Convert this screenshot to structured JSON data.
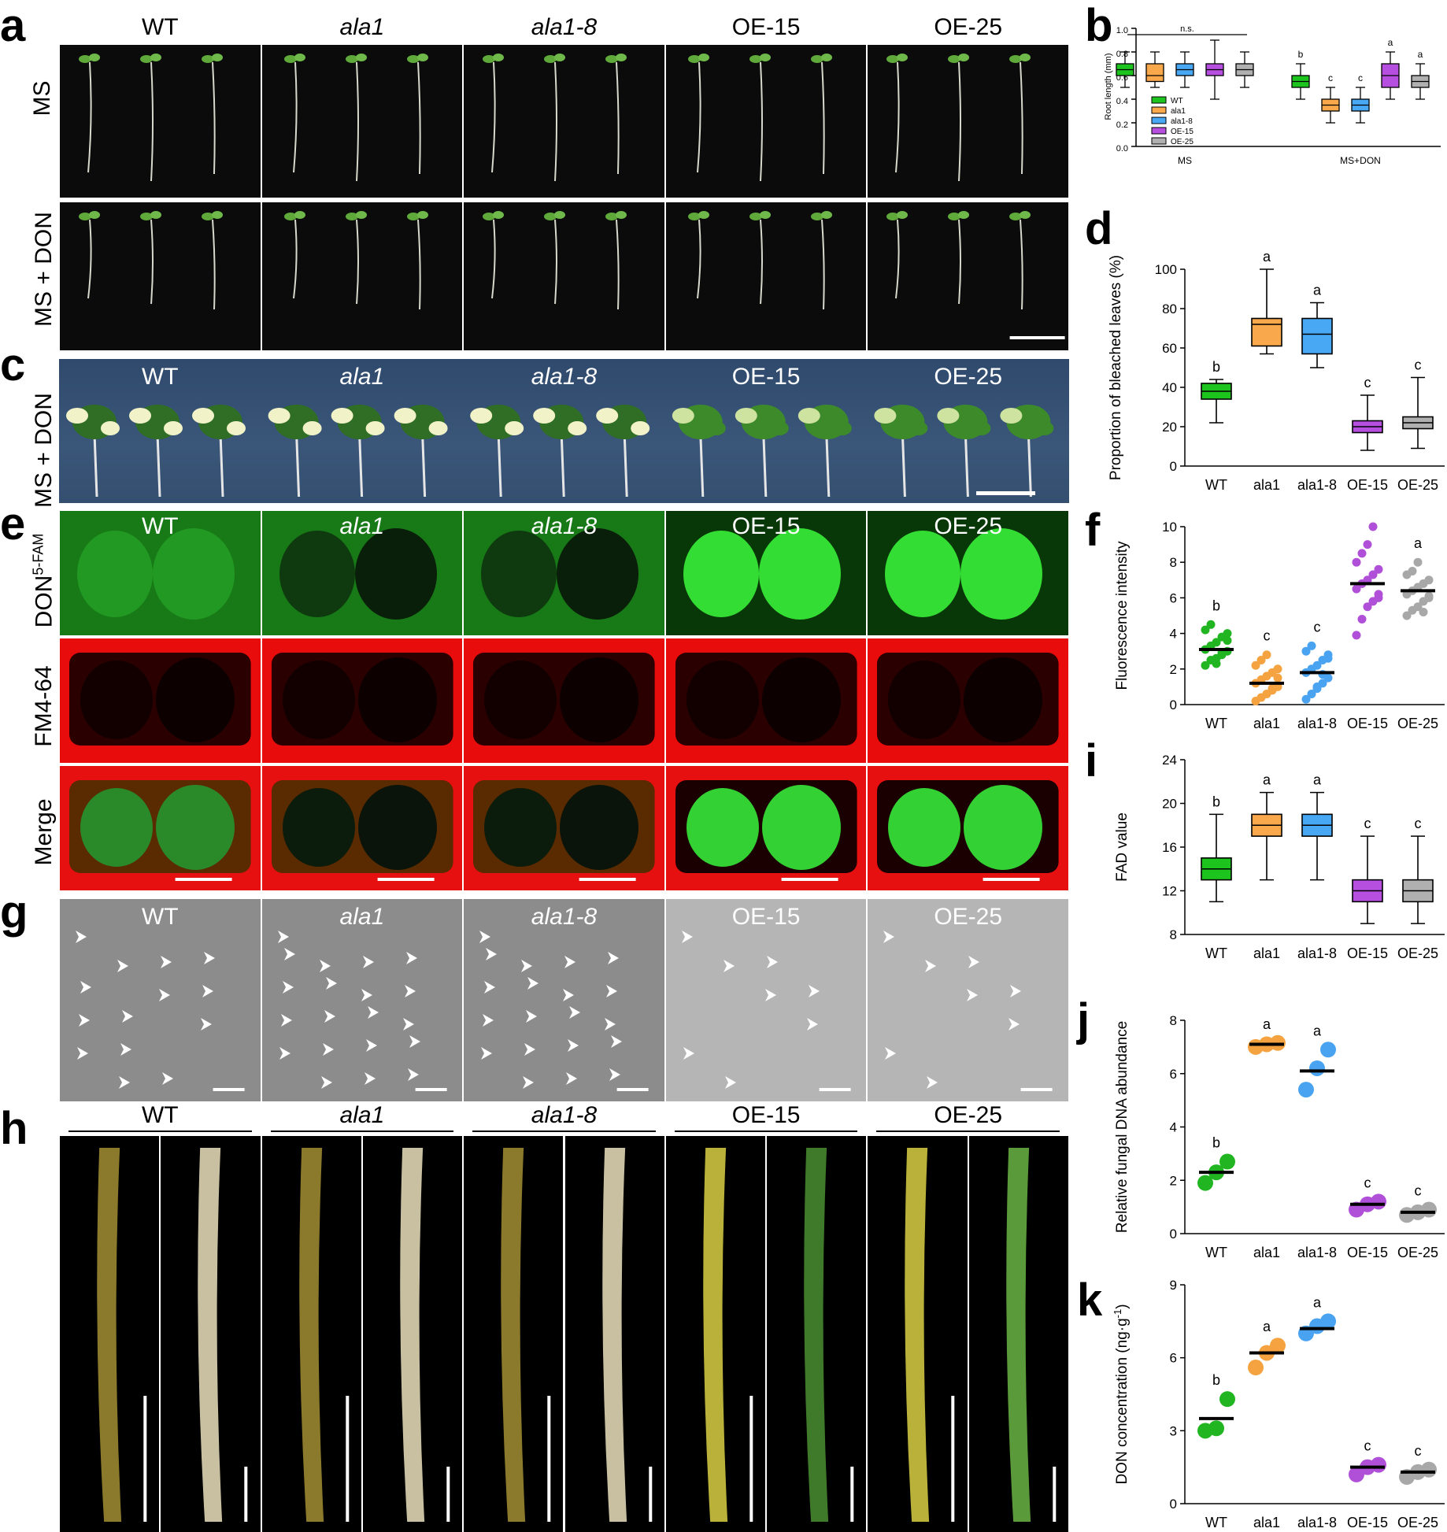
{
  "panel_letters": {
    "a": "a",
    "b": "b",
    "c": "c",
    "d": "d",
    "e": "e",
    "f": "f",
    "g": "g",
    "h": "h",
    "i": "i",
    "j": "j",
    "k": "k"
  },
  "genotypes": [
    "WT",
    "ala1",
    "ala1-8",
    "OE-15",
    "OE-25"
  ],
  "italic_genotypes": [
    false,
    true,
    true,
    false,
    false
  ],
  "row_labels": {
    "a_top": "MS",
    "a_bottom": "MS + DON",
    "c": "MS + DON",
    "e_1": "DON",
    "e_1_sup": "5-FAM",
    "e_2": "FM4-64",
    "e_3": "Merge"
  },
  "colors": {
    "WT": "#22b522",
    "ala1": "#f5a340",
    "ala1-8": "#4aa3f0",
    "OE-15": "#b050d8",
    "OE-25": "#a8a8a8",
    "WT_fill": "#1ec41e",
    "ala1_fill": "#f9a94c",
    "ala1-8_fill": "#48a8f4",
    "OE-15_fill": "#b64fe0",
    "OE-25_fill": "#b0b0b0",
    "gfp": "#2ed12e",
    "fm": "#f20e0e"
  },
  "chart_data": [
    {
      "id": "b",
      "type": "box",
      "ylabel": "Root length (mm)",
      "ylim": [
        0,
        1.0
      ],
      "yticks": [
        "0.0",
        "0.2",
        "0.4",
        "0.6",
        "0.8",
        "1.0"
      ],
      "groups": [
        "MS",
        "MS+DON"
      ],
      "legend": [
        "WT",
        "ala1",
        "ala1-8",
        "OE-15",
        "OE-25"
      ],
      "annotation": "n.s.",
      "series": [
        {
          "group": "MS",
          "boxes": [
            {
              "min": 0.5,
              "q1": 0.6,
              "median": 0.65,
              "q3": 0.7,
              "max": 0.8,
              "letter": ""
            },
            {
              "min": 0.5,
              "q1": 0.55,
              "median": 0.6,
              "q3": 0.7,
              "max": 0.8,
              "letter": ""
            },
            {
              "min": 0.5,
              "q1": 0.6,
              "median": 0.65,
              "q3": 0.7,
              "max": 0.8,
              "letter": ""
            },
            {
              "min": 0.4,
              "q1": 0.6,
              "median": 0.65,
              "q3": 0.7,
              "max": 0.9,
              "letter": ""
            },
            {
              "min": 0.5,
              "q1": 0.6,
              "median": 0.65,
              "q3": 0.7,
              "max": 0.8,
              "letter": ""
            }
          ]
        },
        {
          "group": "MS+DON",
          "boxes": [
            {
              "min": 0.4,
              "q1": 0.5,
              "median": 0.55,
              "q3": 0.6,
              "max": 0.7,
              "letter": "b"
            },
            {
              "min": 0.2,
              "q1": 0.3,
              "median": 0.35,
              "q3": 0.4,
              "max": 0.5,
              "letter": "c"
            },
            {
              "min": 0.2,
              "q1": 0.3,
              "median": 0.35,
              "q3": 0.4,
              "max": 0.5,
              "letter": "c"
            },
            {
              "min": 0.4,
              "q1": 0.5,
              "median": 0.6,
              "q3": 0.7,
              "max": 0.8,
              "letter": "a"
            },
            {
              "min": 0.4,
              "q1": 0.5,
              "median": 0.55,
              "q3": 0.6,
              "max": 0.7,
              "letter": "a"
            }
          ]
        }
      ]
    },
    {
      "id": "d",
      "type": "box",
      "ylabel": "Proportion of bleached leaves (%)",
      "ylim": [
        0,
        100
      ],
      "yticks": [
        "0",
        "20",
        "40",
        "60",
        "80",
        "100"
      ],
      "categories": [
        "WT",
        "ala1",
        "ala1-8",
        "OE-15",
        "OE-25"
      ],
      "boxes": [
        {
          "min": 22,
          "q1": 34,
          "median": 38,
          "q3": 42,
          "max": 44,
          "letter": "b"
        },
        {
          "min": 57,
          "q1": 61,
          "median": 72,
          "q3": 75,
          "max": 100,
          "letter": "a"
        },
        {
          "min": 50,
          "q1": 57,
          "median": 67,
          "q3": 75,
          "max": 83,
          "letter": "a"
        },
        {
          "min": 8,
          "q1": 17,
          "median": 20,
          "q3": 23,
          "max": 36,
          "letter": "c"
        },
        {
          "min": 9,
          "q1": 19,
          "median": 22,
          "q3": 25,
          "max": 45,
          "letter": "c"
        }
      ]
    },
    {
      "id": "f",
      "type": "scatter",
      "ylabel": "Fluorescence intensity",
      "ylim": [
        0,
        10
      ],
      "yticks": [
        "0",
        "2",
        "4",
        "6",
        "8",
        "10"
      ],
      "categories": [
        "WT",
        "ala1",
        "ala1-8",
        "OE-15",
        "OE-25"
      ],
      "points": [
        [
          2.2,
          2.5,
          2.6,
          2.8,
          3.0,
          3.1,
          3.3,
          3.5,
          3.8,
          4.0,
          4.2,
          4.5,
          2.3,
          2.9,
          3.6
        ],
        [
          0.2,
          0.4,
          0.6,
          0.8,
          1.0,
          1.2,
          1.4,
          1.6,
          1.8,
          2.0,
          2.2,
          2.5,
          2.8,
          0.9,
          1.5
        ],
        [
          0.3,
          0.6,
          0.9,
          1.2,
          1.5,
          1.8,
          2.0,
          2.2,
          2.5,
          2.8,
          3.0,
          3.3,
          1.0,
          1.7,
          2.6
        ],
        [
          3.9,
          4.8,
          5.5,
          5.8,
          6.2,
          6.5,
          6.8,
          7.0,
          7.3,
          7.6,
          8.0,
          8.5,
          9.0,
          10.0,
          6.0
        ],
        [
          5.0,
          5.3,
          5.5,
          5.8,
          6.0,
          6.2,
          6.4,
          6.6,
          6.8,
          7.0,
          7.3,
          7.5,
          8.0,
          5.2,
          6.1
        ]
      ],
      "means": [
        3.1,
        1.2,
        1.8,
        6.8,
        6.4
      ],
      "letters": [
        "b",
        "c",
        "c",
        "a",
        "a"
      ]
    },
    {
      "id": "i",
      "type": "box",
      "ylabel": "FAD value",
      "ylim": [
        8,
        24
      ],
      "yticks": [
        "8",
        "12",
        "16",
        "20",
        "24"
      ],
      "categories": [
        "WT",
        "ala1",
        "ala1-8",
        "OE-15",
        "OE-25"
      ],
      "boxes": [
        {
          "min": 11,
          "q1": 13,
          "median": 14,
          "q3": 15,
          "max": 19,
          "letter": "b"
        },
        {
          "min": 13,
          "q1": 17,
          "median": 18,
          "q3": 19,
          "max": 21,
          "letter": "a"
        },
        {
          "min": 13,
          "q1": 17,
          "median": 18,
          "q3": 19,
          "max": 21,
          "letter": "a"
        },
        {
          "min": 9,
          "q1": 11,
          "median": 12,
          "q3": 13,
          "max": 17,
          "letter": "c"
        },
        {
          "min": 9,
          "q1": 11,
          "median": 12,
          "q3": 13,
          "max": 17,
          "letter": "c"
        }
      ]
    },
    {
      "id": "j",
      "type": "scatter",
      "ylabel": "Relative fungal DNA  abundance",
      "ylim": [
        0,
        8
      ],
      "yticks": [
        "0",
        "2",
        "4",
        "6",
        "8"
      ],
      "categories": [
        "WT",
        "ala1",
        "ala1-8",
        "OE-15",
        "OE-25"
      ],
      "points": [
        [
          1.9,
          2.3,
          2.7
        ],
        [
          7.0,
          7.1,
          7.15
        ],
        [
          5.4,
          6.2,
          6.9
        ],
        [
          0.9,
          1.1,
          1.2
        ],
        [
          0.7,
          0.8,
          0.9
        ]
      ],
      "means": [
        2.3,
        7.1,
        6.1,
        1.1,
        0.8
      ],
      "letters": [
        "b",
        "a",
        "a",
        "c",
        "c"
      ]
    },
    {
      "id": "k",
      "type": "scatter",
      "ylabel": "DON concentration (ng·g",
      "ylabel_sup": "-1",
      "ylabel_end": ")",
      "ylim": [
        0,
        9
      ],
      "yticks": [
        "0",
        "3",
        "6",
        "9"
      ],
      "categories": [
        "WT",
        "ala1",
        "ala1-8",
        "OE-15",
        "OE-25"
      ],
      "points": [
        [
          3.0,
          3.1,
          4.3
        ],
        [
          5.6,
          6.2,
          6.5
        ],
        [
          7.0,
          7.3,
          7.5
        ],
        [
          1.2,
          1.5,
          1.6
        ],
        [
          1.1,
          1.3,
          1.4
        ]
      ],
      "means": [
        3.5,
        6.2,
        7.2,
        1.5,
        1.3
      ],
      "letters": [
        "b",
        "a",
        "a",
        "c",
        "c"
      ]
    }
  ]
}
